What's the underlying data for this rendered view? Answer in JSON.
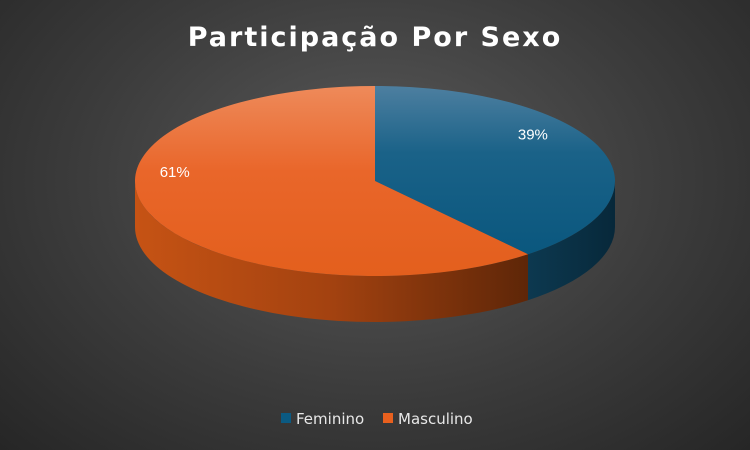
{
  "chart_data": {
    "type": "pie",
    "title": "Participação Por Sexo",
    "categories": [
      "Feminino",
      "Masculino"
    ],
    "values": [
      39,
      61
    ],
    "labels": [
      "39%",
      "61%"
    ],
    "colors": [
      "#0b5a82",
      "#e8601e"
    ],
    "legend": "bottom",
    "style": "3d"
  }
}
